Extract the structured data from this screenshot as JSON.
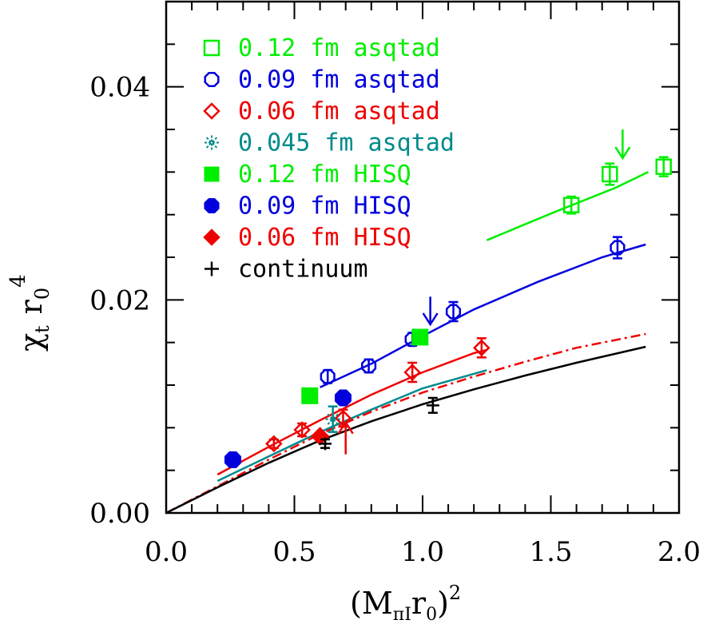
{
  "chart_data": {
    "type": "scatter",
    "xlabel_main": "(M",
    "xlabel_sub": "πI",
    "xlabel_mid": "r",
    "xlabel_sub2": "0",
    "xlabel_close": ")",
    "xlabel_sup": "2",
    "ylabel_main": "χ",
    "ylabel_sub": "t",
    "ylabel_mid": "r",
    "ylabel_sub2": "0",
    "ylabel_sup": "4",
    "xlim": [
      0.0,
      2.0
    ],
    "ylim": [
      0.0,
      0.048
    ],
    "xticks": [
      0.0,
      0.5,
      1.0,
      1.5,
      2.0
    ],
    "xtick_labels": [
      "0.0",
      "0.5",
      "1.0",
      "1.5",
      "2.0"
    ],
    "yticks": [
      0.0,
      0.02,
      0.04
    ],
    "ytick_labels": [
      "0.00",
      "0.02",
      "0.04"
    ],
    "legend_position": "top-left",
    "series": [
      {
        "name": "0.12 fm asqtad",
        "marker": "square-open",
        "color": "#00ee00",
        "points": [
          [
            1.58,
            0.0289,
            0.0008
          ],
          [
            1.73,
            0.0318,
            0.001
          ],
          [
            1.94,
            0.0325,
            0.0009
          ]
        ]
      },
      {
        "name": "0.09 fm asqtad",
        "marker": "octagon-open",
        "color": "#0000dd",
        "points": [
          [
            0.63,
            0.0128,
            0.0006
          ],
          [
            0.79,
            0.0138,
            0.0006
          ],
          [
            0.96,
            0.0163,
            0.0006
          ],
          [
            1.12,
            0.0189,
            0.0009
          ],
          [
            1.76,
            0.0249,
            0.001
          ]
        ]
      },
      {
        "name": "0.06 fm asqtad",
        "marker": "diamond-open",
        "color": "#ee0000",
        "points": [
          [
            0.42,
            0.0065,
            0.0004
          ],
          [
            0.53,
            0.0078,
            0.0006
          ],
          [
            0.69,
            0.0089,
            0.0008
          ],
          [
            0.96,
            0.0132,
            0.0009
          ],
          [
            1.23,
            0.0155,
            0.0009
          ]
        ]
      },
      {
        "name": "0.045 fm asqtad",
        "marker": "burst",
        "color": "#008b8b",
        "points": [
          [
            0.65,
            0.0088,
            0.0012
          ]
        ]
      },
      {
        "name": "0.12 fm HISQ",
        "marker": "square-filled",
        "color": "#00ee00",
        "points": [
          [
            0.56,
            0.011,
            0.0
          ],
          [
            0.99,
            0.0165,
            0.0
          ]
        ]
      },
      {
        "name": "0.09 fm HISQ",
        "marker": "octagon-filled",
        "color": "#0000dd",
        "points": [
          [
            0.26,
            0.005,
            0.0
          ],
          [
            0.69,
            0.0108,
            0.0
          ]
        ]
      },
      {
        "name": "0.06 fm HISQ",
        "marker": "diamond-filled",
        "color": "#ee0000",
        "points": [
          [
            0.6,
            0.0072,
            0.0
          ]
        ]
      },
      {
        "name": "continuum",
        "marker": "plus",
        "color": "#000000",
        "points": [
          [
            0.62,
            0.0065,
            0.0004
          ],
          [
            1.04,
            0.0101,
            0.0007
          ]
        ]
      }
    ],
    "curves": [
      {
        "color": "#00ee00",
        "style": "solid",
        "points": [
          [
            1.25,
            0.0256
          ],
          [
            1.5,
            0.0281
          ],
          [
            1.75,
            0.0305
          ],
          [
            1.88,
            0.032
          ]
        ]
      },
      {
        "color": "#0000dd",
        "style": "solid",
        "points": [
          [
            0.6,
            0.0118
          ],
          [
            0.8,
            0.014
          ],
          [
            1.0,
            0.0166
          ],
          [
            1.2,
            0.0191
          ],
          [
            1.45,
            0.0217
          ],
          [
            1.7,
            0.024
          ],
          [
            1.87,
            0.0252
          ]
        ]
      },
      {
        "color": "#ee0000",
        "style": "solid",
        "points": [
          [
            0.2,
            0.0036
          ],
          [
            0.4,
            0.0062
          ],
          [
            0.6,
            0.0087
          ],
          [
            0.8,
            0.0111
          ],
          [
            1.0,
            0.0132
          ],
          [
            1.2,
            0.015
          ],
          [
            1.25,
            0.0153
          ]
        ]
      },
      {
        "color": "#008b8b",
        "style": "solid",
        "points": [
          [
            0.2,
            0.003
          ],
          [
            0.4,
            0.0053
          ],
          [
            0.6,
            0.0076
          ],
          [
            0.8,
            0.0097
          ],
          [
            1.0,
            0.0117
          ],
          [
            1.25,
            0.0134
          ]
        ]
      },
      {
        "color": "#ee0000",
        "style": "dashdot",
        "points": [
          [
            0.0,
            0.0
          ],
          [
            0.2,
            0.0025
          ],
          [
            0.4,
            0.005
          ],
          [
            0.6,
            0.0074
          ],
          [
            0.8,
            0.0095
          ],
          [
            1.0,
            0.0113
          ],
          [
            1.2,
            0.0128
          ],
          [
            1.4,
            0.0142
          ],
          [
            1.6,
            0.0155
          ],
          [
            1.87,
            0.0168
          ]
        ]
      },
      {
        "color": "#000000",
        "style": "solid",
        "points": [
          [
            0.0,
            0.0
          ],
          [
            0.2,
            0.0024
          ],
          [
            0.4,
            0.0047
          ],
          [
            0.6,
            0.0068
          ],
          [
            0.8,
            0.0086
          ],
          [
            1.0,
            0.0102
          ],
          [
            1.2,
            0.0116
          ],
          [
            1.4,
            0.0129
          ],
          [
            1.6,
            0.0141
          ],
          [
            1.87,
            0.0156
          ]
        ]
      }
    ],
    "arrows": [
      {
        "color": "#00ee00",
        "x": 1.78,
        "y_top": 0.036,
        "y_tip": 0.0333,
        "direction": "down"
      },
      {
        "color": "#0000dd",
        "x": 1.03,
        "y_top": 0.0203,
        "y_tip": 0.0177,
        "direction": "down"
      },
      {
        "color": "#ee0000",
        "x": 0.7,
        "y_top": 0.0055,
        "y_tip": 0.0085,
        "direction": "up"
      }
    ]
  }
}
